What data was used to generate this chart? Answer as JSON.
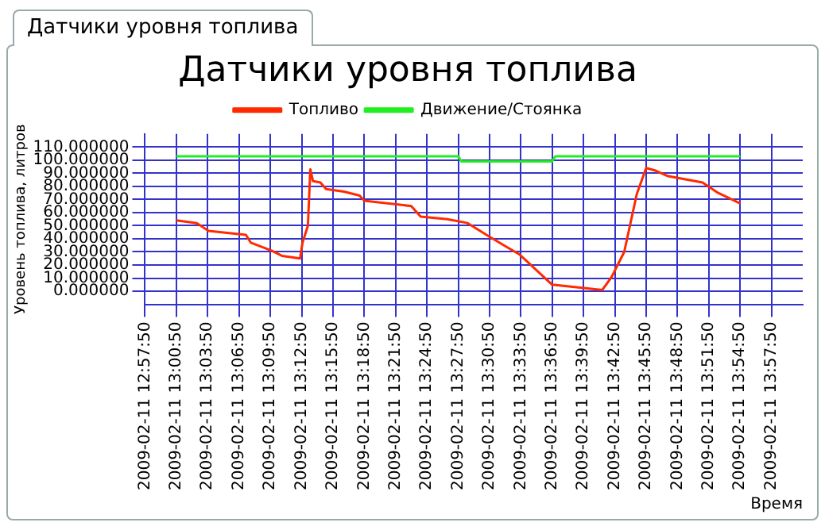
{
  "chart_data": {
    "type": "line",
    "title": "Датчики уровня топлива",
    "xlabel": "Время",
    "ylabel": "Уровень топлива, литров",
    "annotations": [
      "Датчики уровня топлива"
    ],
    "xlim": [
      "2009-02-11T12:57:50",
      "2009-02-11T14:00:50"
    ],
    "xticks": [
      {
        "value": "2009-02-11T12:57:50",
        "label": "2009-02-11 12:57:50"
      },
      {
        "value": "2009-02-11T13:00:50",
        "label": "2009-02-11 13:00:50"
      },
      {
        "value": "2009-02-11T13:03:50",
        "label": "2009-02-11 13:03:50"
      },
      {
        "value": "2009-02-11T13:06:50",
        "label": "2009-02-11 13:06:50"
      },
      {
        "value": "2009-02-11T13:09:50",
        "label": "2009-02-11 13:09:50"
      },
      {
        "value": "2009-02-11T13:12:50",
        "label": "2009-02-11 13:12:50"
      },
      {
        "value": "2009-02-11T13:15:50",
        "label": "2009-02-11 13:15:50"
      },
      {
        "value": "2009-02-11T13:18:50",
        "label": "2009-02-11 13:18:50"
      },
      {
        "value": "2009-02-11T13:21:50",
        "label": "2009-02-11 13:21:50"
      },
      {
        "value": "2009-02-11T13:24:50",
        "label": "2009-02-11 13:24:50"
      },
      {
        "value": "2009-02-11T13:27:50",
        "label": "2009-02-11 13:27:50"
      },
      {
        "value": "2009-02-11T13:30:50",
        "label": "2009-02-11 13:30:50"
      },
      {
        "value": "2009-02-11T13:33:50",
        "label": "2009-02-11 13:33:50"
      },
      {
        "value": "2009-02-11T13:36:50",
        "label": "2009-02-11 13:36:50"
      },
      {
        "value": "2009-02-11T13:39:50",
        "label": "2009-02-11 13:39:50"
      },
      {
        "value": "2009-02-11T13:42:50",
        "label": "2009-02-11 13:42:50"
      },
      {
        "value": "2009-02-11T13:45:50",
        "label": "2009-02-11 13:45:50"
      },
      {
        "value": "2009-02-11T13:48:50",
        "label": "2009-02-11 13:48:50"
      },
      {
        "value": "2009-02-11T13:51:50",
        "label": "2009-02-11 13:51:50"
      },
      {
        "value": "2009-02-11T13:54:50",
        "label": "2009-02-11 13:54:50"
      },
      {
        "value": "2009-02-11T13:57:50",
        "label": "2009-02-11 13:57:50"
      }
    ],
    "ylim": [
      -10,
      120
    ],
    "yticks": [
      {
        "value": 0,
        "label": "0.000000"
      },
      {
        "value": 10,
        "label": "10.000000"
      },
      {
        "value": 20,
        "label": "20.000000"
      },
      {
        "value": 30,
        "label": "30.000000"
      },
      {
        "value": 40,
        "label": "40.000000"
      },
      {
        "value": 50,
        "label": "50.000000"
      },
      {
        "value": 60,
        "label": "60.000000"
      },
      {
        "value": 70,
        "label": "70.000000"
      },
      {
        "value": 80,
        "label": "80.000000"
      },
      {
        "value": 90,
        "label": "90.000000"
      },
      {
        "value": 100,
        "label": "100.000000"
      },
      {
        "value": 110,
        "label": "110.000000"
      }
    ],
    "grid": true,
    "legend": "top",
    "marker": "none",
    "line_style": "solid",
    "series": [
      {
        "name": "Топливо",
        "color": "#ff2a00",
        "x": [
          "2009-02-11T13:00:50",
          "2009-02-11T13:02:47",
          "2009-02-11T13:03:55",
          "2009-02-11T13:07:30",
          "2009-02-11T13:07:58",
          "2009-02-11T13:09:57",
          "2009-02-11T13:10:57",
          "2009-02-11T13:12:41",
          "2009-02-11T13:12:55",
          "2009-02-11T13:13:26",
          "2009-02-11T13:13:40",
          "2009-02-11T13:13:55",
          "2009-02-11T13:14:38",
          "2009-02-11T13:15:10",
          "2009-02-11T13:16:53",
          "2009-02-11T13:18:23",
          "2009-02-11T13:18:50",
          "2009-02-11T13:23:20",
          "2009-02-11T13:24:14",
          "2009-02-11T13:26:47",
          "2009-02-11T13:28:44",
          "2009-02-11T13:30:45",
          "2009-02-11T13:32:38",
          "2009-02-11T13:33:43",
          "2009-02-11T13:36:50",
          "2009-02-11T13:41:38",
          "2009-02-11T13:42:32",
          "2009-02-11T13:43:44",
          "2009-02-11T13:44:56",
          "2009-02-11T13:45:50",
          "2009-02-11T13:46:44",
          "2009-02-11T13:47:51",
          "2009-02-11T13:51:14",
          "2009-02-11T13:52:44",
          "2009-02-11T13:54:50"
        ],
        "values": [
          54,
          52,
          46,
          43,
          37,
          31,
          27,
          25,
          37,
          50,
          93,
          84,
          83,
          78,
          76,
          73,
          69,
          65,
          57,
          55,
          52,
          42,
          33,
          28,
          5,
          1,
          11,
          30,
          74,
          94,
          92,
          88,
          83,
          75,
          67
        ]
      },
      {
        "name": "Движение/Стоянка",
        "color": "#22ee22",
        "x": [
          "2009-02-11T13:00:50",
          "2009-02-11T13:27:50",
          "2009-02-11T13:28:08",
          "2009-02-11T13:36:50",
          "2009-02-11T13:37:08",
          "2009-02-11T13:54:50"
        ],
        "values": [
          103,
          103,
          99,
          99,
          103,
          103
        ]
      }
    ]
  }
}
